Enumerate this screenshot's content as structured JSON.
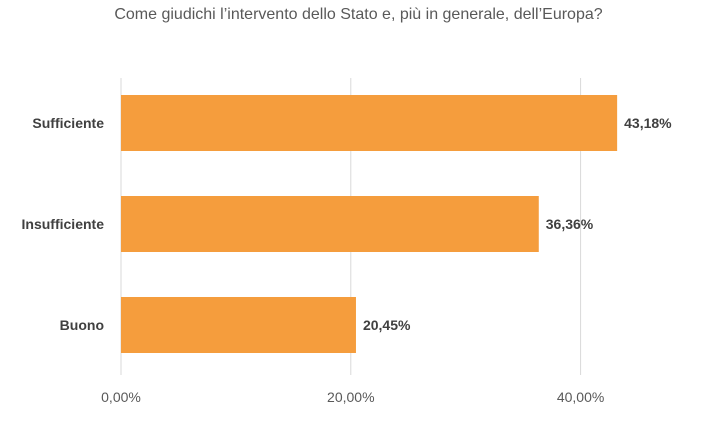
{
  "chart_data": {
    "type": "bar",
    "orientation": "horizontal",
    "title": "Come giudichi l’intervento dello Stato e, più in generale, dell’Europa?",
    "categories": [
      "Sufficiente",
      "Insufficiente",
      "Buono"
    ],
    "values": [
      43.18,
      36.36,
      20.45
    ],
    "data_labels": [
      "43,18%",
      "36,36%",
      "20,45%"
    ],
    "xlim": [
      0,
      40
    ],
    "x_ticks": [
      {
        "value": 0,
        "label": "0,00%"
      },
      {
        "value": 20,
        "label": "20,00%"
      },
      {
        "value": 40,
        "label": "40,00%"
      }
    ],
    "grid": true,
    "legend": "none",
    "colors": {
      "bar": "#F59D3D",
      "grid": "#D9D9D9"
    }
  }
}
